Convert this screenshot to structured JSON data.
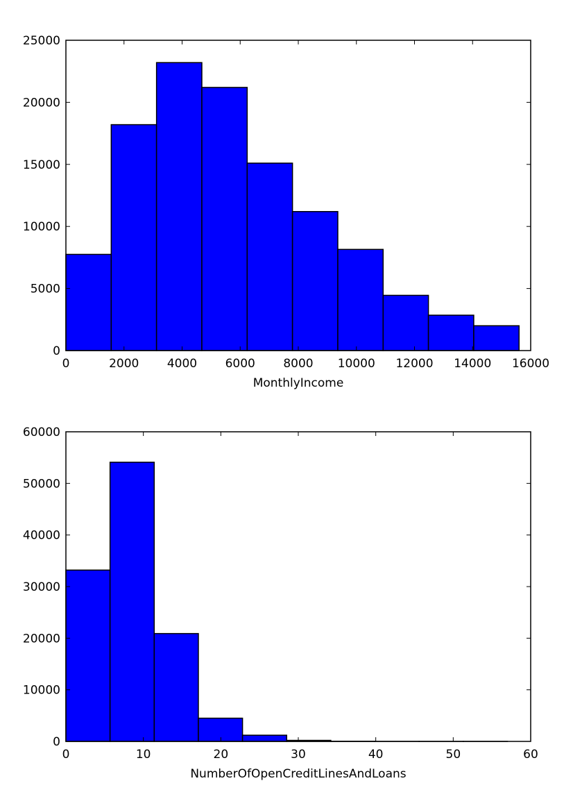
{
  "chart_data": [
    {
      "type": "bar",
      "title": "",
      "xlabel": "MonthlyIncome",
      "ylabel": "",
      "xlim": [
        0,
        16000
      ],
      "ylim": [
        0,
        25000
      ],
      "xticks": [
        0,
        2000,
        4000,
        6000,
        8000,
        10000,
        12000,
        14000,
        16000
      ],
      "yticks": [
        0,
        5000,
        10000,
        15000,
        20000,
        25000
      ],
      "bins": [
        {
          "x0": 0,
          "x1": 1560,
          "value": 7750
        },
        {
          "x0": 1560,
          "x1": 3120,
          "value": 18200
        },
        {
          "x0": 3120,
          "x1": 4680,
          "value": 23200
        },
        {
          "x0": 4680,
          "x1": 6240,
          "value": 21200
        },
        {
          "x0": 6240,
          "x1": 7800,
          "value": 15100
        },
        {
          "x0": 7800,
          "x1": 9360,
          "value": 11200
        },
        {
          "x0": 9360,
          "x1": 10920,
          "value": 8150
        },
        {
          "x0": 10920,
          "x1": 12480,
          "value": 4450
        },
        {
          "x0": 12480,
          "x1": 14040,
          "value": 2850
        },
        {
          "x0": 14040,
          "x1": 15600,
          "value": 2000
        }
      ],
      "color": "#0000ff",
      "grid": false
    },
    {
      "type": "bar",
      "title": "",
      "xlabel": "NumberOfOpenCreditLinesAndLoans",
      "ylabel": "",
      "xlim": [
        0,
        60
      ],
      "ylim": [
        0,
        60000
      ],
      "xticks": [
        0,
        10,
        20,
        30,
        40,
        50,
        60
      ],
      "yticks": [
        0,
        10000,
        20000,
        30000,
        40000,
        50000,
        60000
      ],
      "bins": [
        {
          "x0": 0,
          "x1": 5.7,
          "value": 33200
        },
        {
          "x0": 5.7,
          "x1": 11.4,
          "value": 54100
        },
        {
          "x0": 11.4,
          "x1": 17.1,
          "value": 20900
        },
        {
          "x0": 17.1,
          "x1": 22.8,
          "value": 4500
        },
        {
          "x0": 22.8,
          "x1": 28.5,
          "value": 1200
        },
        {
          "x0": 28.5,
          "x1": 34.2,
          "value": 200
        },
        {
          "x0": 34.2,
          "x1": 39.9,
          "value": 30
        },
        {
          "x0": 39.9,
          "x1": 45.6,
          "value": 5
        },
        {
          "x0": 45.6,
          "x1": 51.3,
          "value": 2
        },
        {
          "x0": 51.3,
          "x1": 57.0,
          "value": 1
        }
      ],
      "color": "#0000ff",
      "grid": false
    }
  ]
}
